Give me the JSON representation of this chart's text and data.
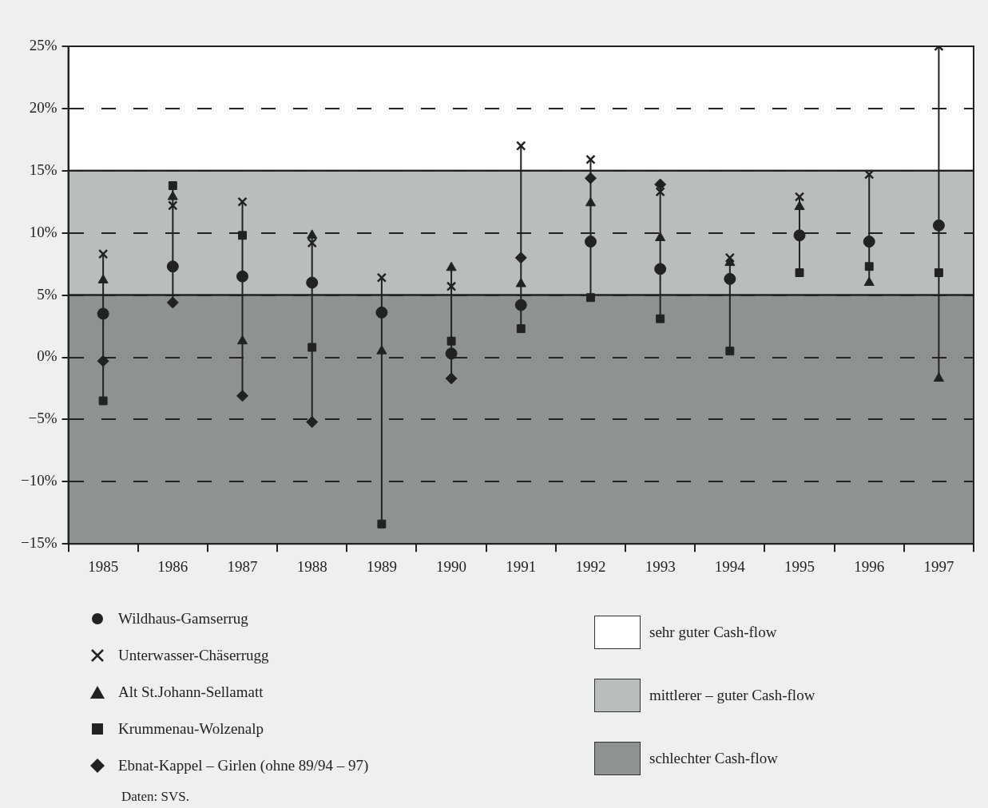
{
  "chart_data": {
    "type": "scatter",
    "categories": [
      "1985",
      "1986",
      "1987",
      "1988",
      "1989",
      "1990",
      "1991",
      "1992",
      "1993",
      "1994",
      "1995",
      "1996",
      "1997"
    ],
    "series": [
      {
        "name": "Wildhaus-Gamserrug",
        "color": "#222222",
        "marker": "circle",
        "values": [
          3.5,
          7.3,
          6.5,
          6.0,
          3.6,
          0.3,
          4.2,
          9.3,
          7.1,
          6.3,
          9.8,
          9.3,
          10.6
        ]
      },
      {
        "name": "Unterwasser-Chäserrugg",
        "color": "#222222",
        "marker": "cross",
        "values": [
          8.3,
          12.2,
          12.5,
          9.2,
          6.4,
          5.7,
          17.0,
          15.9,
          13.3,
          8.0,
          12.9,
          14.7,
          25.0
        ]
      },
      {
        "name": "Alt St.Johann-Sellamatt",
        "color": "#222222",
        "marker": "triangle",
        "values": [
          6.2,
          12.9,
          1.3,
          9.8,
          0.5,
          7.2,
          5.9,
          12.4,
          9.6,
          7.6,
          12.1,
          6.0,
          -1.7
        ]
      },
      {
        "name": "Krummenau-Wolzenalp",
        "color": "#222222",
        "marker": "square",
        "values": [
          -3.5,
          13.8,
          9.8,
          0.8,
          -13.4,
          1.3,
          2.3,
          4.8,
          3.1,
          0.5,
          6.8,
          7.3,
          6.8
        ]
      },
      {
        "name": "Ebnat-Kappel – Girlen (ohne 89/94 – 97)",
        "color": "#222222",
        "marker": "diamond",
        "values": [
          -0.3,
          4.4,
          -3.1,
          -5.2,
          null,
          -1.7,
          8.0,
          14.4,
          13.9,
          null,
          null,
          null,
          null
        ]
      }
    ],
    "ylim": [
      -15,
      25
    ],
    "yticks": [
      {
        "value": -15,
        "label": "−15%"
      },
      {
        "value": -10,
        "label": "−10%"
      },
      {
        "value": -5,
        "label": "−5%"
      },
      {
        "value": 0,
        "label": "0%"
      },
      {
        "value": 5,
        "label": "5%"
      },
      {
        "value": 10,
        "label": "10%"
      },
      {
        "value": 15,
        "label": "15%"
      },
      {
        "value": 20,
        "label": "20%"
      },
      {
        "value": 25,
        "label": "25%"
      }
    ],
    "grid": "y",
    "line_style": "dashed",
    "bands": [
      {
        "axis": "y",
        "from": 15,
        "to": 25,
        "label": "sehr guter Cash-flow",
        "color": "#ffffff"
      },
      {
        "axis": "y",
        "from": 5,
        "to": 15,
        "label": "mittlerer – guter Cash-flow",
        "color": "#b9bdbd"
      },
      {
        "axis": "y",
        "from": -15,
        "to": 5,
        "label": "schlechter Cash-flow",
        "color": "#8e9292"
      }
    ],
    "legend": "bottom",
    "annotations": [
      "Daten: SVS."
    ]
  }
}
